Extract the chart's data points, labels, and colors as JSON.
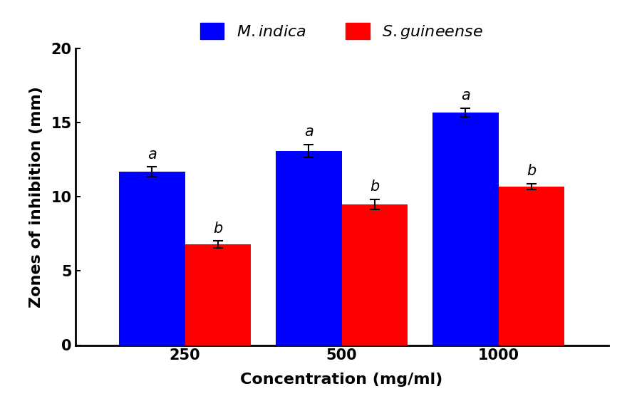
{
  "concentrations": [
    "250",
    "500",
    "1000"
  ],
  "m_indica_values": [
    11.7,
    13.1,
    15.7
  ],
  "s_guineense_values": [
    6.8,
    9.5,
    10.7
  ],
  "m_indica_errors": [
    0.35,
    0.45,
    0.3
  ],
  "s_guineense_errors": [
    0.25,
    0.35,
    0.2
  ],
  "m_indica_color": "#0000FF",
  "s_guineense_color": "#FF0000",
  "ylabel": "Zones of inhibition (mm)",
  "xlabel": "Concentration (mg/ml)",
  "ylim": [
    0,
    20
  ],
  "yticks": [
    0,
    5,
    10,
    15,
    20
  ],
  "bar_width": 0.42,
  "m_indica_letters": [
    "a",
    "a",
    "a"
  ],
  "s_guineense_letters": [
    "b",
    "b",
    "b"
  ],
  "axis_label_fontsize": 16,
  "tick_fontsize": 15,
  "legend_fontsize": 16,
  "letter_fontsize": 15,
  "background_color": "#ffffff"
}
